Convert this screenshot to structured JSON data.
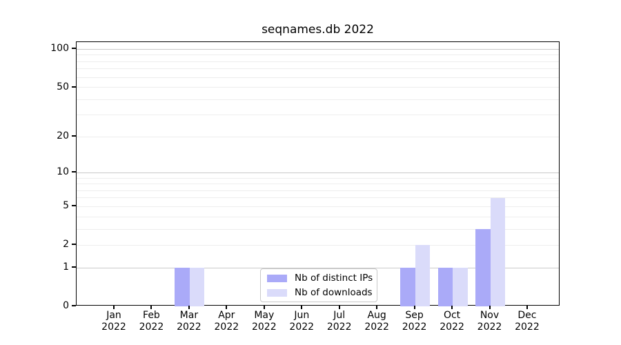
{
  "chart_data": {
    "type": "bar",
    "title": "seqnames.db 2022",
    "categories": [
      {
        "month": "Jan",
        "year": "2022"
      },
      {
        "month": "Feb",
        "year": "2022"
      },
      {
        "month": "Mar",
        "year": "2022"
      },
      {
        "month": "Apr",
        "year": "2022"
      },
      {
        "month": "May",
        "year": "2022"
      },
      {
        "month": "Jun",
        "year": "2022"
      },
      {
        "month": "Jul",
        "year": "2022"
      },
      {
        "month": "Aug",
        "year": "2022"
      },
      {
        "month": "Sep",
        "year": "2022"
      },
      {
        "month": "Oct",
        "year": "2022"
      },
      {
        "month": "Nov",
        "year": "2022"
      },
      {
        "month": "Dec",
        "year": "2022"
      }
    ],
    "series": [
      {
        "name": "Nb of distinct IPs",
        "color": "#aaaaf8",
        "values": [
          0,
          0,
          1,
          0,
          0,
          0,
          0,
          0,
          1,
          1,
          3,
          0
        ]
      },
      {
        "name": "Nb of downloads",
        "color": "#dadbfa",
        "values": [
          0,
          0,
          1,
          0,
          0,
          0,
          0,
          0,
          2,
          1,
          6,
          0
        ]
      }
    ],
    "y_axis": {
      "scale": "log10(1+y)",
      "tick_values": [
        0,
        1,
        2,
        5,
        10,
        20,
        50,
        100
      ],
      "tick_labels": [
        "0",
        "1",
        "2",
        "5",
        "10",
        "20",
        "50",
        "100"
      ],
      "range": [
        0,
        113
      ],
      "major_gridlines": [
        1,
        10,
        100
      ],
      "minor_gridlines": [
        2,
        3,
        4,
        5,
        6,
        7,
        8,
        9,
        20,
        30,
        40,
        50,
        60,
        70,
        80,
        90
      ]
    },
    "grid": true,
    "legend_position": "inside-bottom-center",
    "colors": {
      "major_grid": "#c9c9c9",
      "minor_grid": "#ededed",
      "spine": "#000000",
      "text": "#000000"
    }
  }
}
